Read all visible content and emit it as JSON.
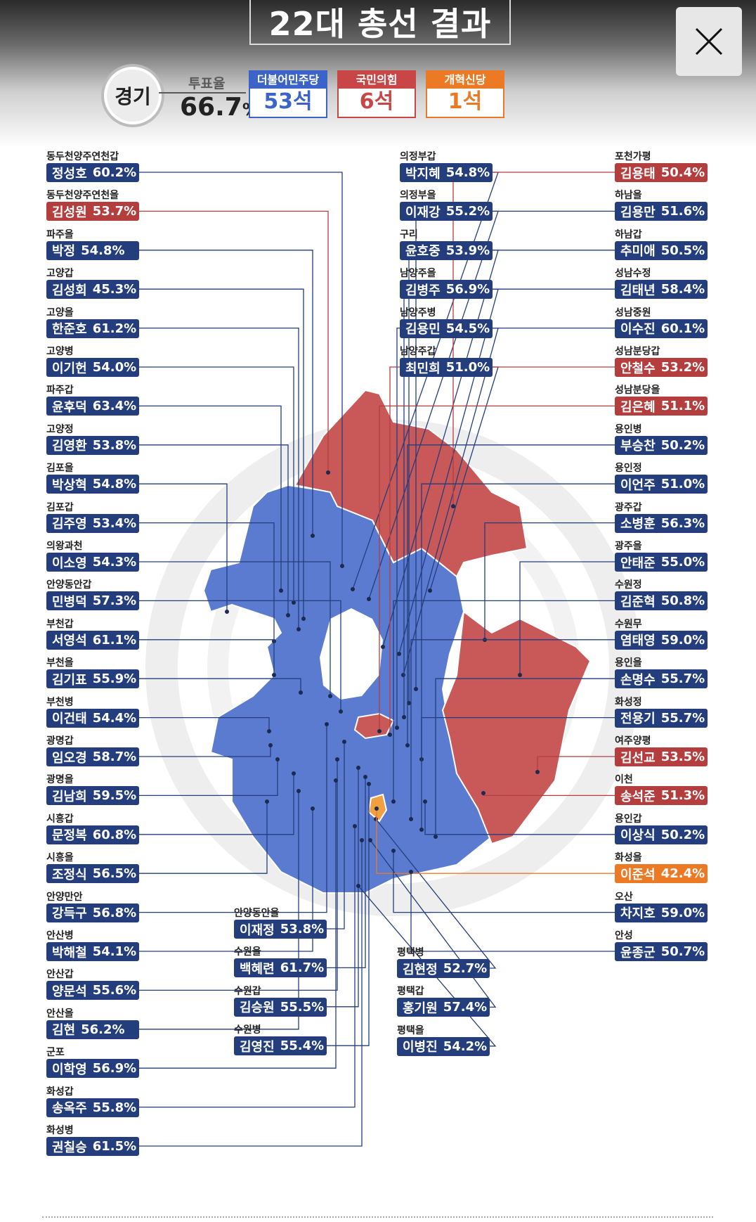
{
  "title": "22대 총선 결과",
  "region": "경기",
  "turnout": {
    "label": "투표율",
    "value": "66.7",
    "unit": "%"
  },
  "parties": [
    {
      "name": "더불어민주당",
      "seats": "53석",
      "color": "#3c64c8"
    },
    {
      "name": "국민의힘",
      "seats": "6석",
      "color": "#c84646"
    },
    {
      "name": "개혁신당",
      "seats": "1석",
      "color": "#ec7a25"
    }
  ],
  "colors": {
    "dem": "#243e7d",
    "ppp": "#b43e3e",
    "reform": "#ec7a25",
    "dem_area": "#5a7bd0",
    "ppp_area": "#c95858",
    "reform_area": "#f0a040"
  },
  "close_icon": "close-icon",
  "districts": [
    {
      "name": "동두천양주연천갑",
      "candidate": "정성호",
      "pct": "60.2%",
      "party": "dem"
    },
    {
      "name": "동두천양주연천을",
      "candidate": "김성원",
      "pct": "53.7%",
      "party": "ppp"
    },
    {
      "name": "파주을",
      "candidate": "박정",
      "pct": "54.8%",
      "party": "dem"
    },
    {
      "name": "고양갑",
      "candidate": "김성회",
      "pct": "45.3%",
      "party": "dem"
    },
    {
      "name": "고양을",
      "candidate": "한준호",
      "pct": "61.2%",
      "party": "dem"
    },
    {
      "name": "고양병",
      "candidate": "이기헌",
      "pct": "54.0%",
      "party": "dem"
    },
    {
      "name": "파주갑",
      "candidate": "윤후덕",
      "pct": "63.4%",
      "party": "dem"
    },
    {
      "name": "고양정",
      "candidate": "김영환",
      "pct": "53.8%",
      "party": "dem"
    },
    {
      "name": "김포을",
      "candidate": "박상혁",
      "pct": "54.8%",
      "party": "dem"
    },
    {
      "name": "김포갑",
      "candidate": "김주영",
      "pct": "53.4%",
      "party": "dem"
    },
    {
      "name": "의왕과천",
      "candidate": "이소영",
      "pct": "54.3%",
      "party": "dem"
    },
    {
      "name": "안양동안갑",
      "candidate": "민병덕",
      "pct": "57.3%",
      "party": "dem"
    },
    {
      "name": "부천갑",
      "candidate": "서영석",
      "pct": "61.1%",
      "party": "dem"
    },
    {
      "name": "부천을",
      "candidate": "김기표",
      "pct": "55.9%",
      "party": "dem"
    },
    {
      "name": "부천병",
      "candidate": "이건태",
      "pct": "54.4%",
      "party": "dem"
    },
    {
      "name": "광명갑",
      "candidate": "임오경",
      "pct": "58.7%",
      "party": "dem"
    },
    {
      "name": "광명을",
      "candidate": "김남희",
      "pct": "59.5%",
      "party": "dem"
    },
    {
      "name": "시흥갑",
      "candidate": "문정복",
      "pct": "60.8%",
      "party": "dem"
    },
    {
      "name": "시흥을",
      "candidate": "조정식",
      "pct": "56.5%",
      "party": "dem"
    },
    {
      "name": "안양만안",
      "candidate": "강득구",
      "pct": "56.8%",
      "party": "dem"
    },
    {
      "name": "안산병",
      "candidate": "박해철",
      "pct": "54.1%",
      "party": "dem"
    },
    {
      "name": "안산갑",
      "candidate": "양문석",
      "pct": "55.6%",
      "party": "dem"
    },
    {
      "name": "안산을",
      "candidate": "김현",
      "pct": "56.2%",
      "party": "dem"
    },
    {
      "name": "군포",
      "candidate": "이학영",
      "pct": "56.9%",
      "party": "dem"
    },
    {
      "name": "화성갑",
      "candidate": "송옥주",
      "pct": "55.8%",
      "party": "dem"
    },
    {
      "name": "화성병",
      "candidate": "권칠승",
      "pct": "61.5%",
      "party": "dem"
    },
    {
      "name": "의정부갑",
      "candidate": "박지혜",
      "pct": "54.8%",
      "party": "dem"
    },
    {
      "name": "의정부을",
      "candidate": "이재강",
      "pct": "55.2%",
      "party": "dem"
    },
    {
      "name": "구리",
      "candidate": "윤호중",
      "pct": "53.9%",
      "party": "dem"
    },
    {
      "name": "남양주을",
      "candidate": "김병주",
      "pct": "56.9%",
      "party": "dem"
    },
    {
      "name": "남양주병",
      "candidate": "김용민",
      "pct": "54.5%",
      "party": "dem"
    },
    {
      "name": "남양주갑",
      "candidate": "최민희",
      "pct": "51.0%",
      "party": "dem"
    },
    {
      "name": "안양동안을",
      "candidate": "이재정",
      "pct": "53.8%",
      "party": "dem"
    },
    {
      "name": "수원을",
      "candidate": "백혜련",
      "pct": "61.7%",
      "party": "dem"
    },
    {
      "name": "수원갑",
      "candidate": "김승원",
      "pct": "55.5%",
      "party": "dem"
    },
    {
      "name": "수원병",
      "candidate": "김영진",
      "pct": "55.4%",
      "party": "dem"
    },
    {
      "name": "평택병",
      "candidate": "김현정",
      "pct": "52.7%",
      "party": "dem"
    },
    {
      "name": "평택갑",
      "candidate": "홍기원",
      "pct": "57.4%",
      "party": "dem"
    },
    {
      "name": "평택을",
      "candidate": "이병진",
      "pct": "54.2%",
      "party": "dem"
    },
    {
      "name": "포천가평",
      "candidate": "김용태",
      "pct": "50.4%",
      "party": "ppp"
    },
    {
      "name": "하남을",
      "candidate": "김용만",
      "pct": "51.6%",
      "party": "dem"
    },
    {
      "name": "하남갑",
      "candidate": "추미애",
      "pct": "50.5%",
      "party": "dem"
    },
    {
      "name": "성남수정",
      "candidate": "김태년",
      "pct": "58.4%",
      "party": "dem"
    },
    {
      "name": "성남중원",
      "candidate": "이수진",
      "pct": "60.1%",
      "party": "dem"
    },
    {
      "name": "성남분당갑",
      "candidate": "안철수",
      "pct": "53.2%",
      "party": "ppp"
    },
    {
      "name": "성남분당을",
      "candidate": "김은혜",
      "pct": "51.1%",
      "party": "ppp"
    },
    {
      "name": "용인병",
      "candidate": "부승찬",
      "pct": "50.2%",
      "party": "dem"
    },
    {
      "name": "용인정",
      "candidate": "이언주",
      "pct": "51.0%",
      "party": "dem"
    },
    {
      "name": "광주갑",
      "candidate": "소병훈",
      "pct": "56.3%",
      "party": "dem"
    },
    {
      "name": "광주을",
      "candidate": "안태준",
      "pct": "55.0%",
      "party": "dem"
    },
    {
      "name": "수원정",
      "candidate": "김준혁",
      "pct": "50.8%",
      "party": "dem"
    },
    {
      "name": "수원무",
      "candidate": "염태영",
      "pct": "59.0%",
      "party": "dem"
    },
    {
      "name": "용인을",
      "candidate": "손명수",
      "pct": "55.7%",
      "party": "dem"
    },
    {
      "name": "화성정",
      "candidate": "전용기",
      "pct": "55.7%",
      "party": "dem"
    },
    {
      "name": "여주양평",
      "candidate": "김선교",
      "pct": "53.5%",
      "party": "ppp"
    },
    {
      "name": "이천",
      "candidate": "송석준",
      "pct": "51.3%",
      "party": "ppp"
    },
    {
      "name": "용인갑",
      "candidate": "이상식",
      "pct": "50.2%",
      "party": "dem"
    },
    {
      "name": "화성을",
      "candidate": "이준석",
      "pct": "42.4%",
      "party": "reform"
    },
    {
      "name": "오산",
      "candidate": "차지호",
      "pct": "59.0%",
      "party": "dem"
    },
    {
      "name": "안성",
      "candidate": "윤종군",
      "pct": "50.7%",
      "party": "dem"
    }
  ]
}
